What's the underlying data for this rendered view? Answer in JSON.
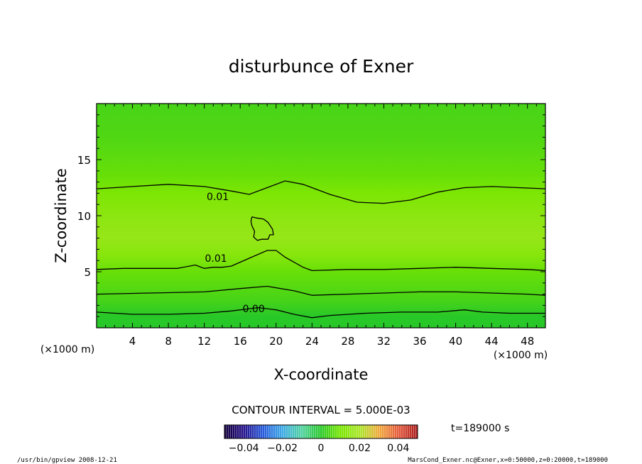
{
  "chart_data": {
    "type": "heatmap",
    "title": "disturbunce of Exner",
    "xlabel": "X-coordinate",
    "ylabel": "Z-coordinate",
    "x_unit": "(×1000 m)",
    "y_unit": "(×1000 m)",
    "xlim": [
      0,
      50
    ],
    "ylim": [
      0,
      20
    ],
    "x_ticks": [
      "4",
      "8",
      "12",
      "16",
      "20",
      "24",
      "28",
      "32",
      "36",
      "40",
      "44",
      "48"
    ],
    "y_ticks": [
      "5",
      "10",
      "15"
    ],
    "contour_interval_text": "CONTOUR INTERVAL = 5.000E-03",
    "time_text": "t=189000 s",
    "colorbar": {
      "range": [
        -0.05,
        0.05
      ],
      "tick_labels": [
        "−0.04",
        "−0.02",
        "0",
        "0.02",
        "0.04"
      ],
      "tick_values": [
        -0.04,
        -0.02,
        0,
        0.02,
        0.04
      ]
    },
    "contours": [
      {
        "label": "0.01",
        "label_at": [
          13.5,
          11.7
        ],
        "points": [
          [
            0,
            12.4
          ],
          [
            4,
            12.6
          ],
          [
            8,
            12.8
          ],
          [
            12,
            12.6
          ],
          [
            15,
            12.2
          ],
          [
            17,
            11.9
          ],
          [
            19,
            12.5
          ],
          [
            21,
            13.1
          ],
          [
            23,
            12.8
          ],
          [
            26,
            11.9
          ],
          [
            29,
            11.2
          ],
          [
            32,
            11.1
          ],
          [
            35,
            11.4
          ],
          [
            38,
            12.1
          ],
          [
            41,
            12.5
          ],
          [
            44,
            12.6
          ],
          [
            47,
            12.5
          ],
          [
            50,
            12.4
          ]
        ]
      },
      {
        "label": "0.01",
        "label_at": [
          13.3,
          6.2
        ],
        "points": [
          [
            0,
            5.2
          ],
          [
            3,
            5.3
          ],
          [
            6,
            5.3
          ],
          [
            9,
            5.3
          ],
          [
            11,
            5.6
          ],
          [
            12,
            5.3
          ],
          [
            13,
            5.4
          ],
          [
            14,
            5.4
          ],
          [
            15,
            5.5
          ],
          [
            17,
            6.2
          ],
          [
            19,
            6.9
          ],
          [
            20,
            6.9
          ],
          [
            21,
            6.3
          ],
          [
            23,
            5.4
          ],
          [
            24,
            5.1
          ],
          [
            28,
            5.2
          ],
          [
            32,
            5.2
          ],
          [
            36,
            5.3
          ],
          [
            40,
            5.4
          ],
          [
            44,
            5.3
          ],
          [
            48,
            5.2
          ],
          [
            50,
            5.1
          ]
        ]
      },
      {
        "label": "",
        "points": [
          [
            0,
            3.0
          ],
          [
            6,
            3.1
          ],
          [
            12,
            3.2
          ],
          [
            16,
            3.5
          ],
          [
            19,
            3.7
          ],
          [
            22,
            3.3
          ],
          [
            24,
            2.9
          ],
          [
            28,
            3.0
          ],
          [
            32,
            3.1
          ],
          [
            36,
            3.2
          ],
          [
            40,
            3.2
          ],
          [
            44,
            3.1
          ],
          [
            48,
            3.0
          ],
          [
            50,
            2.9
          ]
        ]
      },
      {
        "label": "0.00",
        "label_at": [
          17.5,
          1.7
        ],
        "points": [
          [
            0,
            1.4
          ],
          [
            4,
            1.2
          ],
          [
            8,
            1.2
          ],
          [
            12,
            1.3
          ],
          [
            15,
            1.5
          ],
          [
            18,
            1.8
          ],
          [
            20,
            1.6
          ],
          [
            22,
            1.2
          ],
          [
            24,
            0.9
          ],
          [
            26,
            1.1
          ],
          [
            30,
            1.3
          ],
          [
            34,
            1.4
          ],
          [
            38,
            1.4
          ],
          [
            41,
            1.6
          ],
          [
            43,
            1.4
          ],
          [
            46,
            1.3
          ],
          [
            50,
            1.3
          ]
        ]
      },
      {
        "label": "",
        "points": [
          [
            17.3,
            9.9
          ],
          [
            17.8,
            9.8
          ],
          [
            18.6,
            9.7
          ],
          [
            19.1,
            9.4
          ],
          [
            19.6,
            8.8
          ],
          [
            19.7,
            8.3
          ],
          [
            19.3,
            8.3
          ],
          [
            19.1,
            7.9
          ],
          [
            18.4,
            7.9
          ],
          [
            17.9,
            7.8
          ],
          [
            17.5,
            8.1
          ],
          [
            17.6,
            8.6
          ],
          [
            17.3,
            9.1
          ],
          [
            17.2,
            9.5
          ],
          [
            17.3,
            9.9
          ]
        ]
      }
    ],
    "field_bands": [
      {
        "z": 0,
        "value": 0.0
      },
      {
        "z": 1,
        "value": 0.0
      },
      {
        "z": 2.5,
        "value": 0.004
      },
      {
        "z": 5,
        "value": 0.008
      },
      {
        "z": 6.5,
        "value": 0.013
      },
      {
        "z": 8,
        "value": 0.016
      },
      {
        "z": 10,
        "value": 0.014
      },
      {
        "z": 12,
        "value": 0.011
      },
      {
        "z": 13.5,
        "value": 0.008
      },
      {
        "z": 17,
        "value": 0.005
      },
      {
        "z": 20,
        "value": 0.004
      }
    ]
  },
  "footer": {
    "left": "/usr/bin/gpview   2008-12-21",
    "right": "MarsCond_Exner.nc@Exner,x=0:50000,z=0:20000,t=189000"
  }
}
